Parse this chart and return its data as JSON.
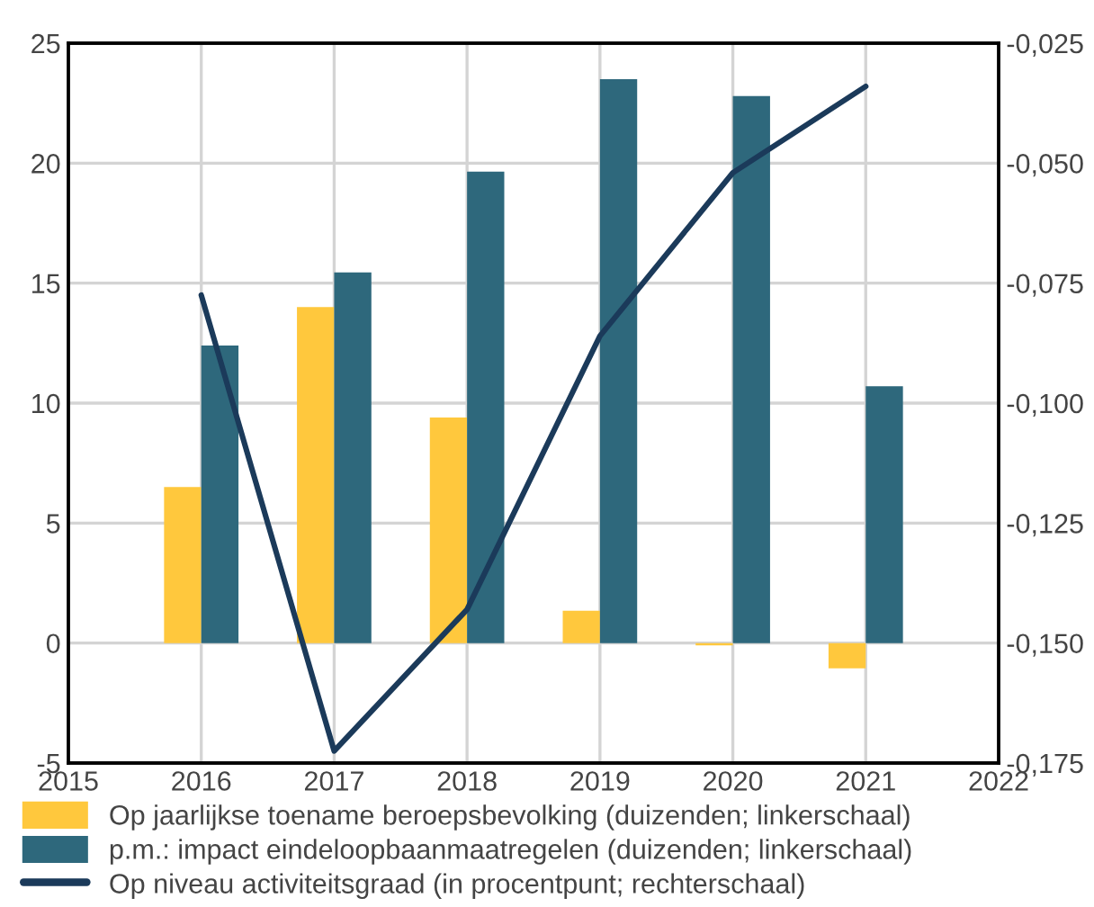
{
  "chart_data": {
    "type": "bar",
    "x": [
      2016,
      2017,
      2018,
      2019,
      2020,
      2021
    ],
    "series": [
      {
        "name": "Op jaarlijkse toename beroepsbevolking (duizenden; linkerschaal)",
        "color": "#ffc83d",
        "values": [
          6.5,
          14.0,
          9.4,
          1.35,
          -0.1,
          -1.05
        ]
      },
      {
        "name": "p.m.: impact eindeloopbaanmaatregelen (duizenden; linkerschaal)",
        "color": "#2e687c",
        "values": [
          12.4,
          15.45,
          19.65,
          23.5,
          22.8,
          10.7
        ]
      },
      {
        "name": "Op niveau activiteitsgraad (in procentpunt; rechterschaal)",
        "color": "#1b3a5a",
        "type": "line",
        "axis": "y2",
        "values": [
          -0.0775,
          -0.1725,
          -0.143,
          -0.086,
          -0.052,
          -0.034
        ]
      }
    ],
    "xlim": [
      2015,
      2022
    ],
    "xticks": [
      2015,
      2016,
      2017,
      2018,
      2019,
      2020,
      2021,
      2022
    ],
    "ylim": [
      -5,
      25
    ],
    "yticks": [
      -5,
      0,
      5,
      10,
      15,
      20,
      25
    ],
    "y2lim": [
      -0.175,
      -0.025
    ],
    "y2ticks": [
      {
        "value": -0.175,
        "label": "-0,175"
      },
      {
        "value": -0.15,
        "label": "-0,150"
      },
      {
        "value": -0.125,
        "label": "-0,125"
      },
      {
        "value": -0.1,
        "label": "-0,100"
      },
      {
        "value": -0.075,
        "label": "-0,075"
      },
      {
        "value": -0.05,
        "label": "-0,050"
      },
      {
        "value": -0.025,
        "label": "-0,025"
      }
    ],
    "grid": true,
    "legend": "bottom"
  }
}
